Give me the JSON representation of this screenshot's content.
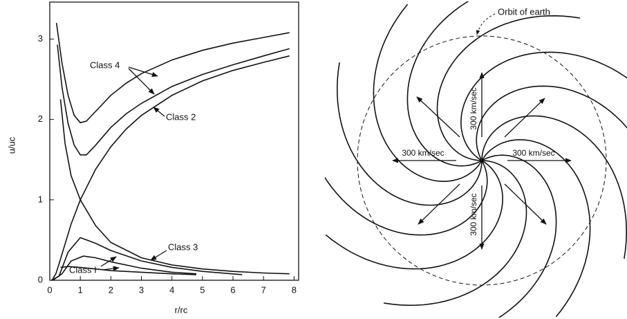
{
  "chart_data": {
    "type": "line",
    "xlabel": "r/rc",
    "ylabel": "u/uc",
    "xlim": [
      0,
      8.15
    ],
    "ylim": [
      0,
      3.46
    ],
    "xticks": [
      0,
      1,
      2,
      3,
      4,
      5,
      6,
      7,
      8
    ],
    "yticks": [
      0,
      1,
      2,
      3
    ],
    "series": [
      {
        "color": "#111",
        "x": [
          0.22,
          0.4,
          0.6,
          0.8,
          1.0,
          1.2,
          1.5,
          2,
          2.5,
          3,
          4,
          5,
          6,
          7,
          7.85
        ],
        "values": [
          3.2,
          2.7,
          2.3,
          2.05,
          1.96,
          1.98,
          2.1,
          2.3,
          2.45,
          2.57,
          2.74,
          2.86,
          2.95,
          3.02,
          3.08
        ]
      },
      {
        "color": "#111",
        "x": [
          0.25,
          0.4,
          0.6,
          0.8,
          1.0,
          1.2,
          1.5,
          2,
          2.5,
          3,
          4,
          5,
          6,
          7,
          7.85
        ],
        "values": [
          2.93,
          2.4,
          1.95,
          1.68,
          1.56,
          1.56,
          1.68,
          1.9,
          2.07,
          2.2,
          2.41,
          2.56,
          2.68,
          2.79,
          2.88
        ]
      },
      {
        "color": "#111",
        "x": [
          0.1,
          0.2,
          0.3,
          0.5,
          0.7,
          1.0,
          1.5,
          2,
          2.5,
          3,
          4,
          5,
          6,
          7,
          7.85
        ],
        "values": [
          0.02,
          0.08,
          0.2,
          0.45,
          0.7,
          1.0,
          1.38,
          1.66,
          1.88,
          2.05,
          2.3,
          2.48,
          2.61,
          2.71,
          2.79
        ]
      },
      {
        "color": "#111",
        "x": [
          0.35,
          0.5,
          0.7,
          1.0,
          1.5,
          2,
          3,
          4,
          5,
          6,
          7,
          7.85
        ],
        "values": [
          2.25,
          1.7,
          1.3,
          1.0,
          0.68,
          0.47,
          0.28,
          0.19,
          0.14,
          0.11,
          0.09,
          0.08
        ]
      },
      {
        "color": "#111",
        "x": [
          0.05,
          0.3,
          0.6,
          1.0,
          1.5,
          2,
          3,
          4,
          5,
          6.3
        ],
        "values": [
          0,
          0.05,
          0.35,
          0.53,
          0.46,
          0.37,
          0.24,
          0.16,
          0.11,
          0.07
        ]
      },
      {
        "color": "#111",
        "x": [
          0.1,
          0.4,
          0.7,
          1.1,
          1.5,
          2,
          3,
          4,
          4.8
        ],
        "values": [
          0,
          0.08,
          0.24,
          0.3,
          0.28,
          0.23,
          0.15,
          0.1,
          0.08
        ]
      },
      {
        "color": "#111",
        "x": [
          0.35,
          0.6,
          1,
          1.5,
          2,
          3,
          4,
          4.8
        ],
        "values": [
          0.16,
          0.17,
          0.16,
          0.14,
          0.12,
          0.1,
          0.08,
          0.07
        ]
      }
    ],
    "annotations": [
      "Class 4",
      "Class 2",
      "Class 3",
      "Class I"
    ]
  },
  "diagram": {
    "orbit_label": "Orbit of earth",
    "speed_labels": [
      "300 km/sec",
      "300 km/sec",
      "300 km/sec",
      "300 km/sec"
    ]
  }
}
